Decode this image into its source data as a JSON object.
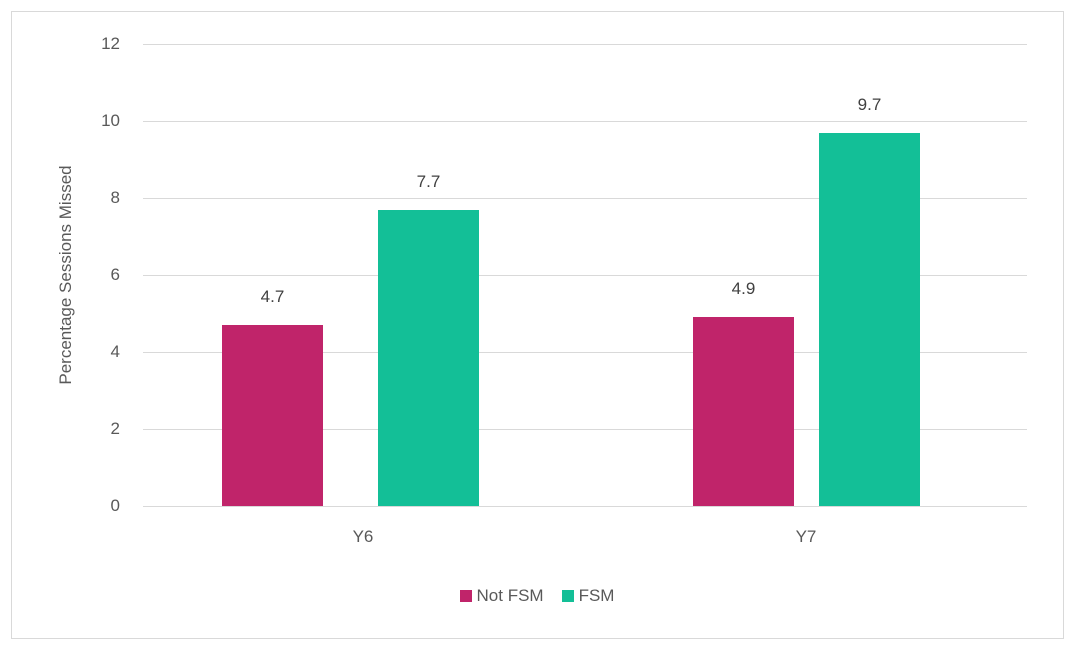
{
  "chart_data": {
    "type": "bar",
    "title": "",
    "xlabel": "",
    "ylabel": "Percentage Sessions  Missed",
    "ylim": [
      0,
      12
    ],
    "yticks": [
      "0",
      "2",
      "4",
      "6",
      "8",
      "10",
      "12"
    ],
    "categories": [
      "Y6",
      "Y7"
    ],
    "series": [
      {
        "name": "Not FSM",
        "color": "#C0246A",
        "values": [
          4.7,
          4.9
        ],
        "labels": [
          "4.7",
          "4.9"
        ]
      },
      {
        "name": "FSM",
        "color": "#13BF97",
        "values": [
          7.7,
          9.7
        ],
        "labels": [
          "7.7",
          "9.7"
        ]
      }
    ],
    "grid": true,
    "legend_position": "bottom"
  }
}
